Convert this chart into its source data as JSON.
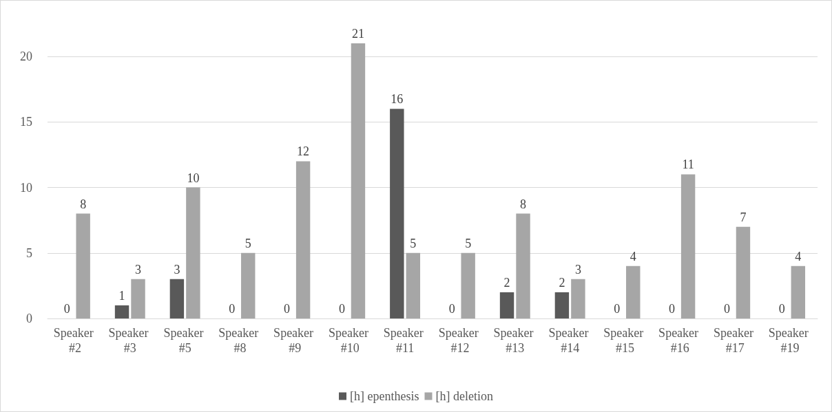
{
  "chart_data": {
    "type": "bar",
    "categories": [
      "Speaker #2",
      "Speaker #3",
      "Speaker #5",
      "Speaker #8",
      "Speaker #9",
      "Speaker #10",
      "Speaker #11",
      "Speaker #12",
      "Speaker #13",
      "Speaker #14",
      "Speaker #15",
      "Speaker #16",
      "Speaker #17",
      "Speaker #19"
    ],
    "series": [
      {
        "name": "[h] epenthesis",
        "color": "#595959",
        "values": [
          0,
          1,
          3,
          0,
          0,
          0,
          16,
          0,
          2,
          2,
          0,
          0,
          0,
          0
        ]
      },
      {
        "name": "[h] deletion",
        "color": "#a6a6a6",
        "values": [
          8,
          3,
          10,
          5,
          12,
          21,
          5,
          5,
          8,
          3,
          4,
          11,
          7,
          4
        ]
      }
    ],
    "ylim": [
      0,
      21
    ],
    "yticks": [
      0,
      5,
      10,
      15,
      20
    ],
    "grid": "y",
    "legend": "bottom",
    "data_labels": true
  }
}
